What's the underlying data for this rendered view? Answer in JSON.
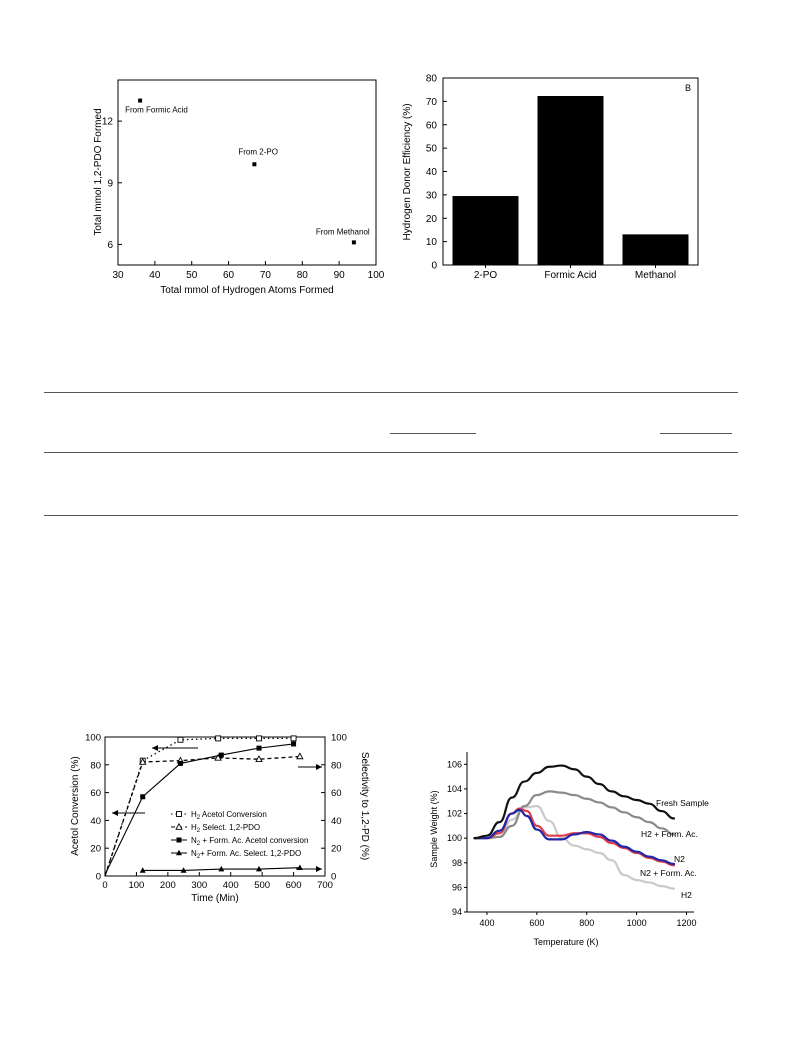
{
  "chart_data": [
    {
      "type": "scatter",
      "xlabel": "Total mmol of Hydrogen Atoms Formed",
      "ylabel": "Total mmol 1,2-PDO Formed",
      "xlim": [
        30,
        100
      ],
      "ylim": [
        5,
        14
      ],
      "xticks": [
        "30",
        "40",
        "50",
        "60",
        "70",
        "80",
        "90",
        "100"
      ],
      "yticks": [
        "6",
        "9",
        "12"
      ],
      "points": [
        {
          "x": 36,
          "y": 13.0,
          "label": "From Formic Acid"
        },
        {
          "x": 67,
          "y": 9.9,
          "label": "From 2-PO"
        },
        {
          "x": 94,
          "y": 6.1,
          "label": "From Methanol"
        }
      ]
    },
    {
      "type": "bar",
      "panel_label": "B",
      "ylabel": "Hydrogen Donor Efficiency (%)",
      "ylim": [
        0,
        80
      ],
      "yticks": [
        "0",
        "10",
        "20",
        "30",
        "40",
        "50",
        "60",
        "70",
        "80"
      ],
      "categories": [
        "2-PO",
        "Formic Acid",
        "Methanol"
      ],
      "values": [
        29.5,
        72.3,
        13.1
      ]
    },
    {
      "type": "line",
      "xlabel": "Time (Min)",
      "ylabel": "Acetol Conversion (%)",
      "ylabel_right": "Selectivity to 1,2-PD (%)",
      "xlim": [
        0,
        700
      ],
      "ylim": [
        0,
        100
      ],
      "xticks": [
        "0",
        "100",
        "200",
        "300",
        "400",
        "500",
        "600",
        "700"
      ],
      "yticks": [
        "0",
        "20",
        "40",
        "60",
        "80",
        "100"
      ],
      "yticks_right": [
        "0",
        "20",
        "40",
        "60",
        "80",
        "100"
      ],
      "series": [
        {
          "name": "H2 Acetol Conversion",
          "legend_sub": "2",
          "legend_pre": "H",
          "legend_post": " Acetol Conversion",
          "marker": "open-square",
          "dash": "dotted",
          "x": [
            0,
            120,
            240,
            360,
            490,
            600
          ],
          "y": [
            0,
            83,
            98,
            99,
            99,
            99
          ]
        },
        {
          "name": "H2 Select. 1,2-PDO",
          "legend_sub": "2",
          "legend_pre": "H",
          "legend_post": " Select. 1,2-PDO",
          "marker": "open-triangle",
          "dash": "dashed",
          "x": [
            0,
            120,
            240,
            360,
            490,
            620
          ],
          "y": [
            0,
            82,
            83,
            85,
            84,
            86
          ]
        },
        {
          "name": "N2 + Form. Ac. Acetol conversion",
          "legend_sub": "2",
          "legend_pre": "N",
          "legend_post": " + Form. Ac. Acetol conversion",
          "marker": "filled-square",
          "dash": "solid",
          "x": [
            0,
            120,
            240,
            370,
            490,
            600
          ],
          "y": [
            1,
            57,
            81,
            87,
            92,
            95
          ]
        },
        {
          "name": "N2+ Form. Ac. Select. 1,2-PDO",
          "legend_sub": "2",
          "legend_pre": "N",
          "legend_post": "+ Form. Ac. Select. 1,2-PDO",
          "marker": "filled-triangle",
          "dash": "solid",
          "x": [
            120,
            250,
            370,
            490,
            620
          ],
          "y": [
            4,
            4,
            5,
            5,
            6
          ]
        }
      ]
    },
    {
      "type": "line",
      "xlabel": "Temperature (K)",
      "ylabel": "Sample Weight (%)",
      "xlim": [
        320,
        1230
      ],
      "ylim": [
        94,
        107
      ],
      "xticks": [
        "400",
        "600",
        "800",
        "1000",
        "1200"
      ],
      "yticks": [
        "94",
        "96",
        "98",
        "100",
        "102",
        "104",
        "106"
      ],
      "series": [
        {
          "name": "Fresh Sample",
          "color": "#111111",
          "x": [
            350,
            400,
            450,
            500,
            550,
            600,
            650,
            700,
            750,
            800,
            850,
            900,
            950,
            1000,
            1050,
            1100,
            1150
          ],
          "y": [
            100,
            100.2,
            101.3,
            103.3,
            104.6,
            105.3,
            105.8,
            105.9,
            105.6,
            105,
            104.4,
            103.8,
            103.4,
            103.1,
            102.8,
            102.2,
            101.6
          ]
        },
        {
          "name": "H2 + Form. Ac.",
          "color": "#8a8a8a",
          "x": [
            350,
            400,
            450,
            500,
            550,
            600,
            650,
            700,
            750,
            800,
            850,
            900,
            950,
            1000,
            1050,
            1100,
            1150
          ],
          "y": [
            100,
            100,
            100.1,
            101,
            102.6,
            103.5,
            103.8,
            103.7,
            103.5,
            103.2,
            102.9,
            102.5,
            102.1,
            101.7,
            101.3,
            100.8,
            100.3
          ]
        },
        {
          "name": "N2",
          "color": "#e23a4b",
          "x": [
            350,
            400,
            450,
            500,
            530,
            560,
            600,
            650,
            700,
            750,
            800,
            850,
            900,
            950,
            1000,
            1050,
            1100,
            1150
          ],
          "y": [
            100,
            100,
            100.4,
            102,
            102.4,
            102.2,
            101,
            100.2,
            100.2,
            100.4,
            100.4,
            100.1,
            99.6,
            99.2,
            98.8,
            98.4,
            98.1,
            97.8
          ]
        },
        {
          "name": "N2 + Form. Ac.",
          "color": "#1f27a6",
          "x": [
            350,
            400,
            450,
            500,
            530,
            560,
            600,
            650,
            700,
            750,
            800,
            850,
            900,
            950,
            1000,
            1050,
            1100,
            1150
          ],
          "y": [
            100,
            100,
            100.6,
            102,
            102.3,
            101.8,
            100.7,
            99.9,
            99.9,
            100.3,
            100.5,
            100.3,
            99.8,
            99.3,
            98.9,
            98.5,
            98.2,
            97.9
          ]
        },
        {
          "name": "H2",
          "color": "#c9c9c9",
          "x": [
            350,
            400,
            450,
            500,
            550,
            600,
            650,
            700,
            750,
            800,
            850,
            900,
            950,
            1000,
            1050,
            1100,
            1150
          ],
          "y": [
            100,
            100,
            100.1,
            101.5,
            102.5,
            102.6,
            101.4,
            100,
            99.4,
            99.1,
            98.8,
            98.2,
            97,
            96.6,
            96.4,
            96.1,
            95.9
          ]
        }
      ]
    }
  ]
}
